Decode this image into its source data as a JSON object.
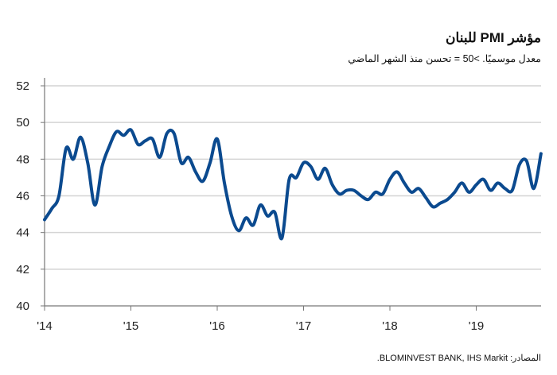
{
  "chart_data": {
    "type": "line",
    "title": "مؤشر PMI للبنان",
    "subtitle": "معدل موسميًا. >50 = تحسن منذ الشهر الماضي",
    "source": "المصادر: BLOMINVEST BANK, IHS Markit.",
    "xlabel": "",
    "ylabel": "",
    "ylim": [
      40,
      52
    ],
    "yticks": [
      "40",
      "42",
      "44",
      "46",
      "48",
      "50",
      "52"
    ],
    "xticks": [
      "'14",
      "'15",
      "'16",
      "'17",
      "'18",
      "'19"
    ],
    "x_start": "2014-01",
    "x_frequency": "monthly",
    "grid": true,
    "color": "#0b4a8f",
    "series": [
      {
        "name": "PMI",
        "values": [
          44.7,
          45.3,
          46.0,
          48.6,
          48.0,
          49.2,
          47.8,
          45.5,
          47.6,
          48.7,
          49.5,
          49.3,
          49.6,
          48.8,
          49.0,
          49.1,
          48.1,
          49.4,
          49.4,
          47.8,
          48.1,
          47.3,
          46.8,
          47.8,
          49.1,
          46.7,
          44.9,
          44.1,
          44.8,
          44.4,
          45.5,
          44.9,
          45.1,
          43.7,
          46.9,
          47.0,
          47.8,
          47.6,
          46.9,
          47.5,
          46.6,
          46.1,
          46.3,
          46.3,
          46.0,
          45.8,
          46.2,
          46.1,
          46.9,
          47.3,
          46.7,
          46.2,
          46.4,
          45.9,
          45.4,
          45.6,
          45.8,
          46.2,
          46.7,
          46.2,
          46.6,
          46.9,
          46.3,
          46.7,
          46.4,
          46.3,
          47.7,
          47.9,
          46.4,
          48.3
        ]
      }
    ]
  }
}
